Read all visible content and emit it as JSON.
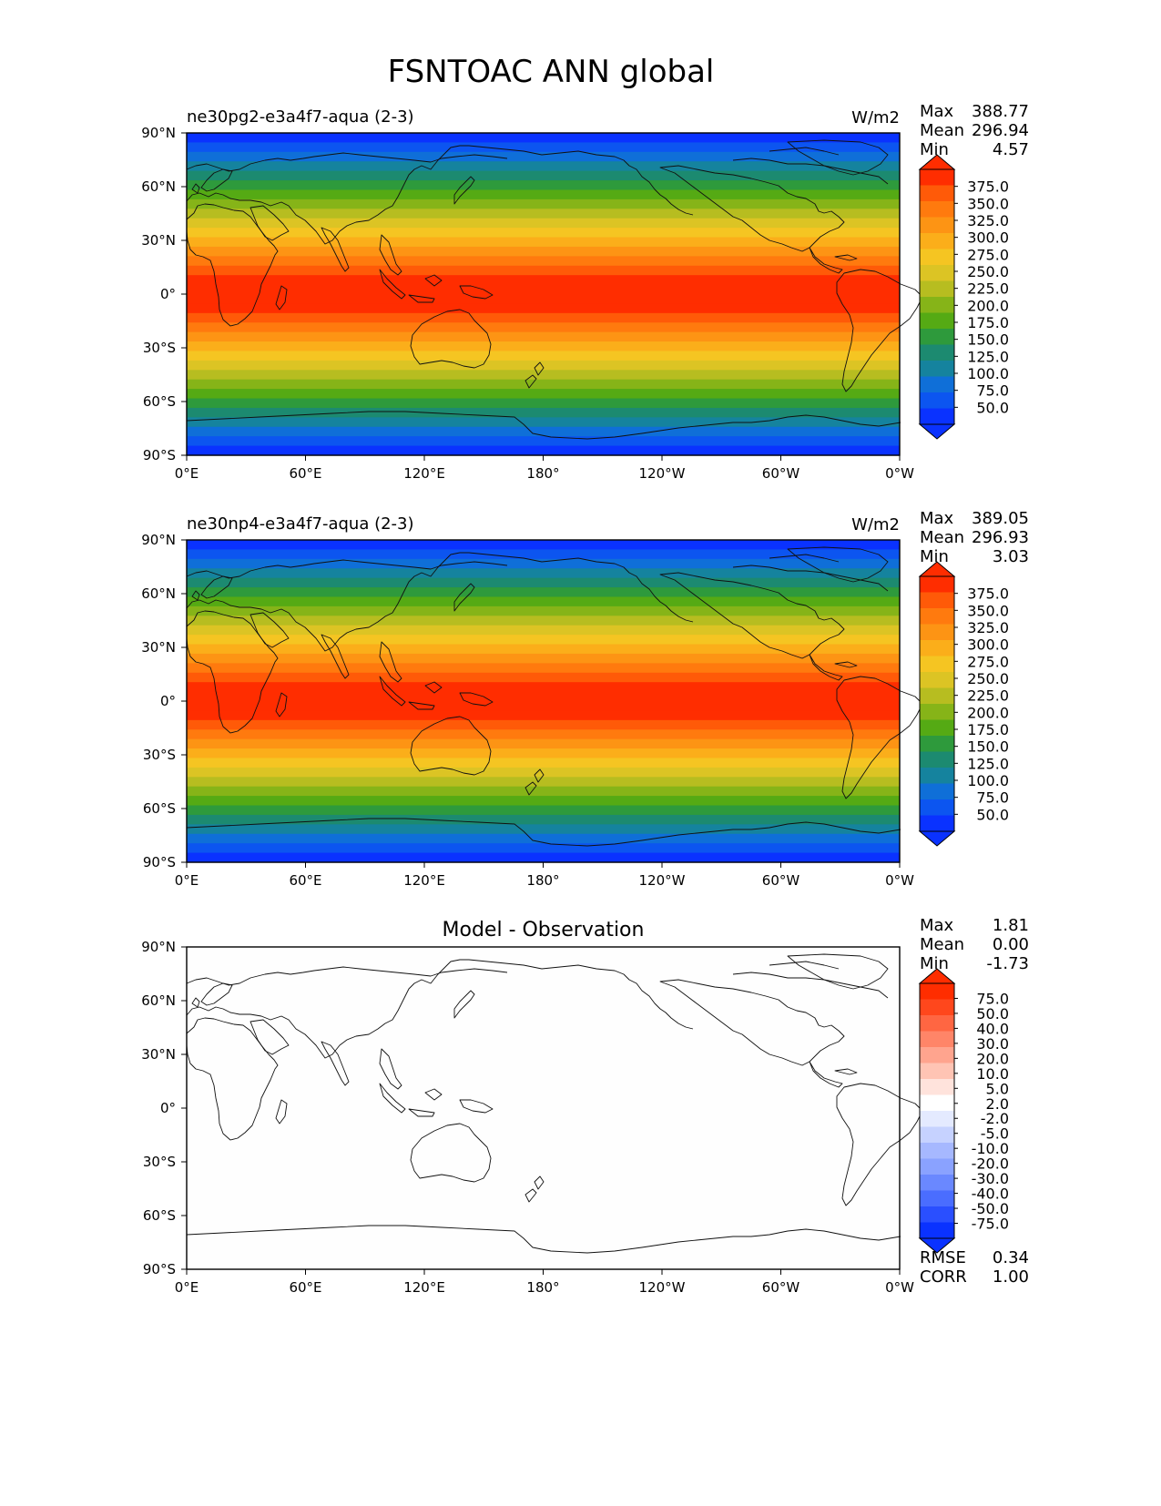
{
  "title": "FSNTOAC ANN global",
  "axes": {
    "lat_ticks": [
      "90°N",
      "60°N",
      "30°N",
      "0°",
      "30°S",
      "60°S",
      "90°S"
    ],
    "lon_ticks": [
      "0°E",
      "60°E",
      "120°E",
      "180°",
      "120°W",
      "60°W",
      "0°W"
    ]
  },
  "chart_data": [
    {
      "type": "heatmap",
      "panel": "test",
      "title": "ne30pg2-e3a4f7-aqua (2-3)",
      "units": "W/m2",
      "stats": {
        "max_label": "Max",
        "max": "388.77",
        "mean_label": "Mean",
        "mean": "296.94",
        "min_label": "Min",
        "min": "4.57"
      },
      "colorbar_levels": [
        "375.0",
        "350.0",
        "325.0",
        "300.0",
        "275.0",
        "250.0",
        "225.0",
        "200.0",
        "175.0",
        "150.0",
        "125.0",
        "100.0",
        "75.0",
        "50.0"
      ],
      "xlim": [
        0,
        360
      ],
      "ylim": [
        -90,
        90
      ]
    },
    {
      "type": "heatmap",
      "panel": "reference",
      "title": "ne30np4-e3a4f7-aqua (2-3)",
      "units": "W/m2",
      "stats": {
        "max_label": "Max",
        "max": "389.05",
        "mean_label": "Mean",
        "mean": "296.93",
        "min_label": "Min",
        "min": "3.03"
      },
      "colorbar_levels": [
        "375.0",
        "350.0",
        "325.0",
        "300.0",
        "275.0",
        "250.0",
        "225.0",
        "200.0",
        "175.0",
        "150.0",
        "125.0",
        "100.0",
        "75.0",
        "50.0"
      ],
      "xlim": [
        0,
        360
      ],
      "ylim": [
        -90,
        90
      ]
    },
    {
      "type": "heatmap",
      "panel": "difference",
      "title": "Model - Observation",
      "units": "",
      "stats": {
        "max_label": "Max",
        "max": "1.81",
        "mean_label": "Mean",
        "mean": "0.00",
        "min_label": "Min",
        "min": "-1.73"
      },
      "colorbar_levels": [
        "75.0",
        "50.0",
        "40.0",
        "30.0",
        "20.0",
        "10.0",
        "5.0",
        "2.0",
        "-2.0",
        "-5.0",
        "-10.0",
        "-20.0",
        "-30.0",
        "-40.0",
        "-50.0",
        "-75.0"
      ],
      "rmse_label": "RMSE",
      "rmse": "0.34",
      "corr_label": "CORR",
      "corr": "1.00",
      "xlim": [
        0,
        360
      ],
      "ylim": [
        -90,
        90
      ]
    }
  ],
  "colors": {
    "field_bands": [
      "#0a32ff",
      "#0c55f0",
      "#0f6fd8",
      "#15839e",
      "#1c8a70",
      "#2e9a3c",
      "#55aa14",
      "#86b418",
      "#b7bd20",
      "#dcc424",
      "#f5c522",
      "#fbae1a",
      "#fd9414",
      "#ff7a0e",
      "#ff5a08",
      "#ff2d00",
      "#ff2d00",
      "#ff2d00",
      "#ff2d00",
      "#ff5a08",
      "#ff7a0e",
      "#fd9414",
      "#fbae1a",
      "#f5c522",
      "#dcc424",
      "#b7bd20",
      "#86b418",
      "#55aa14",
      "#2e9a3c",
      "#1c8a70",
      "#15839e",
      "#0f6fd8",
      "#0c55f0",
      "#0a32ff"
    ],
    "field_cmap": [
      "#0a32ff",
      "#0c55f0",
      "#0f6fd8",
      "#15839e",
      "#1c8a70",
      "#2e9a3c",
      "#55aa14",
      "#86b418",
      "#b7bd20",
      "#dcc424",
      "#f5c522",
      "#fbae1a",
      "#fd9414",
      "#ff7a0e",
      "#ff5a08",
      "#ff2d00"
    ],
    "diff_cmap": [
      "#0a32ff",
      "#2a4fff",
      "#4a6dff",
      "#6a88ff",
      "#8aa2ff",
      "#a6b8ff",
      "#c6d2ff",
      "#e4eaff",
      "#ffffff",
      "#ffe3dc",
      "#ffc4b4",
      "#ffa48e",
      "#ff8568",
      "#ff6642",
      "#ff471c",
      "#ff2d00"
    ],
    "diff_field": "#fefefe"
  }
}
